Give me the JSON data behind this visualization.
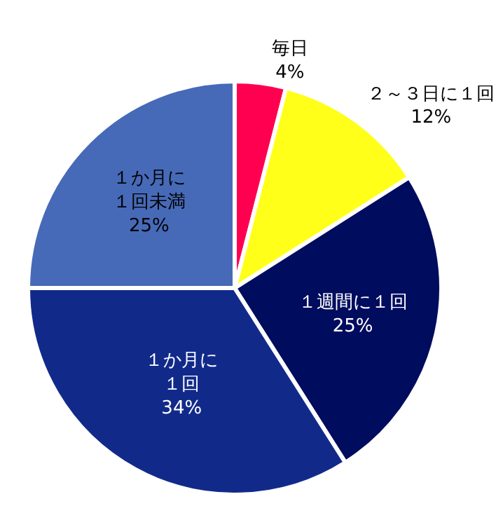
{
  "chart_data": {
    "type": "pie",
    "categories": [
      "毎日",
      "２～３日に１回",
      "１週間に１回",
      "１か月に１回",
      "１か月に１回未満"
    ],
    "values": [
      4,
      12,
      25,
      34,
      25
    ],
    "colors": [
      "#ff0050",
      "#ffff1a",
      "#000c5e",
      "#112a8a",
      "#466ab8"
    ],
    "value_labels": [
      "4%",
      "12%",
      "25%",
      "34%",
      "25%"
    ]
  }
}
